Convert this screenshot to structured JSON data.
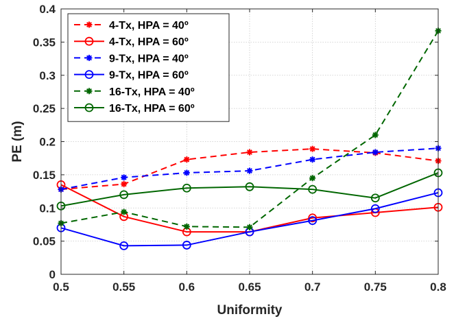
{
  "chart_data": {
    "type": "line",
    "xlabel": "Uniformity",
    "ylabel": "PE (m)",
    "xlim": [
      0.5,
      0.8
    ],
    "ylim": [
      0,
      0.4
    ],
    "xticks": [
      "0.5",
      "0.55",
      "0.6",
      "0.65",
      "0.7",
      "0.75",
      "0.8"
    ],
    "yticks": [
      "0",
      "0.05",
      "0.1",
      "0.15",
      "0.2",
      "0.25",
      "0.3",
      "0.35",
      "0.4"
    ],
    "grid": true,
    "legend_position": "top-left",
    "x": [
      0.5,
      0.55,
      0.6,
      0.65,
      0.7,
      0.75,
      0.8
    ],
    "series": [
      {
        "name": "4-Tx, HPA = 40º",
        "color": "#ff0000",
        "line_style": "dashed",
        "marker": "asterisk",
        "values": [
          0.128,
          0.136,
          0.173,
          0.184,
          0.189,
          0.183,
          0.171
        ]
      },
      {
        "name": "4-Tx, HPA = 60º",
        "color": "#ff0000",
        "line_style": "solid",
        "marker": "circle",
        "values": [
          0.135,
          0.087,
          0.064,
          0.064,
          0.085,
          0.093,
          0.101
        ]
      },
      {
        "name": "9-Tx, HPA = 40º",
        "color": "#0000ff",
        "line_style": "dashed",
        "marker": "asterisk",
        "values": [
          0.128,
          0.146,
          0.153,
          0.156,
          0.173,
          0.184,
          0.19
        ]
      },
      {
        "name": "9-Tx, HPA = 60º",
        "color": "#0000ff",
        "line_style": "solid",
        "marker": "circle",
        "values": [
          0.07,
          0.043,
          0.044,
          0.064,
          0.081,
          0.099,
          0.123
        ]
      },
      {
        "name": "16-Tx, HPA = 40º",
        "color": "#006600",
        "line_style": "dashed",
        "marker": "asterisk",
        "values": [
          0.077,
          0.094,
          0.072,
          0.071,
          0.145,
          0.21,
          0.367
        ]
      },
      {
        "name": "16-Tx, HPA = 60º",
        "color": "#006600",
        "line_style": "solid",
        "marker": "circle",
        "values": [
          0.103,
          0.12,
          0.13,
          0.132,
          0.128,
          0.115,
          0.153
        ]
      }
    ]
  }
}
